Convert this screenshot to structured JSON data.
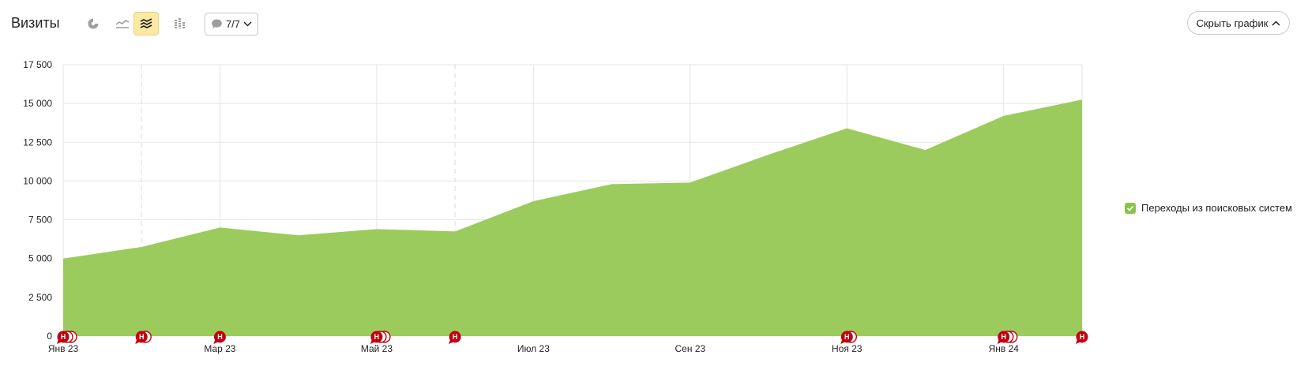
{
  "header": {
    "title": "Визиты",
    "notes_label": "7/7",
    "hide_chart_label": "Скрыть график"
  },
  "toolbar": {
    "icons": [
      "pie-chart-icon",
      "line-chart-icon",
      "area-chart-icon",
      "bar-chart-icon"
    ],
    "active": "area-chart-icon"
  },
  "legend": {
    "items": [
      {
        "label": "Переходы из поисковых систем",
        "checked": true,
        "color": "#8bc34a"
      }
    ]
  },
  "colors": {
    "area": "#9ccb5d",
    "grid": "#e5e5e5",
    "note": "#c3000f"
  },
  "chart_data": {
    "type": "area",
    "title": "",
    "xlabel": "",
    "ylabel": "",
    "ylim": [
      0,
      17500
    ],
    "yticks": [
      0,
      2500,
      5000,
      7500,
      10000,
      12500,
      15000,
      17500
    ],
    "ytick_labels": [
      "0",
      "2 500",
      "5 000",
      "7 500",
      "10 000",
      "12 500",
      "15 000",
      "17 500"
    ],
    "x": [
      "2023-01",
      "2023-02",
      "2023-03",
      "2023-04",
      "2023-05",
      "2023-06",
      "2023-07",
      "2023-08",
      "2023-09",
      "2023-10",
      "2023-11",
      "2023-12",
      "2024-01",
      "2024-02"
    ],
    "xtick_labels": [
      {
        "x": "2023-01",
        "label": "Янв 23"
      },
      {
        "x": "2023-03",
        "label": "Мар 23"
      },
      {
        "x": "2023-05",
        "label": "Май 23"
      },
      {
        "x": "2023-07",
        "label": "Июл 23"
      },
      {
        "x": "2023-09",
        "label": "Сен 23"
      },
      {
        "x": "2023-11",
        "label": "Ноя 23"
      },
      {
        "x": "2024-01",
        "label": "Янв 24"
      }
    ],
    "series": [
      {
        "name": "Переходы из поисковых систем",
        "values": [
          5000,
          5750,
          7000,
          6500,
          6900,
          6750,
          8700,
          9800,
          9900,
          11700,
          13400,
          12000,
          14200,
          15250
        ]
      }
    ],
    "notes": [
      {
        "x": "2023-01",
        "count": 3
      },
      {
        "x": "2023-02",
        "count": 2
      },
      {
        "x": "2023-03",
        "count": 1
      },
      {
        "x": "2023-05",
        "count": 3
      },
      {
        "x": "2023-06",
        "count": 1
      },
      {
        "x": "2023-11",
        "count": 2
      },
      {
        "x": "2024-01",
        "count": 3
      },
      {
        "x": "2024-02",
        "count": 1
      }
    ],
    "note_label": "Н",
    "grid": true,
    "legend_position": "right"
  }
}
